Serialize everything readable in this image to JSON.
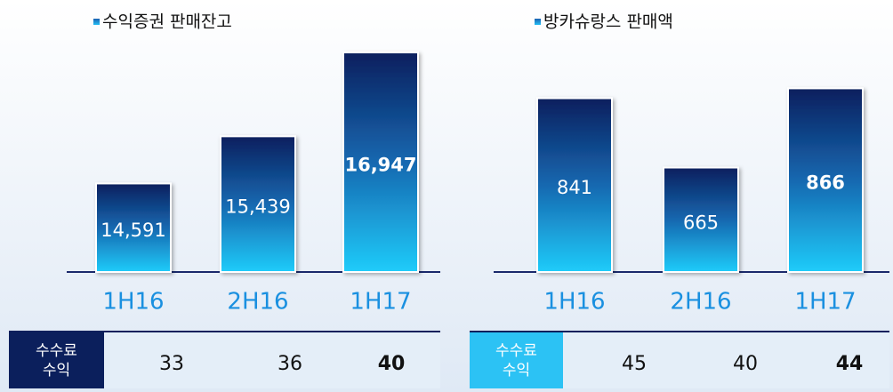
{
  "chart_data": [
    {
      "type": "bar",
      "title": "수익증권 판매잔고",
      "categories": [
        "1H16",
        "2H16",
        "1H17"
      ],
      "values": [
        14591,
        15439,
        16947
      ],
      "value_labels": [
        "14,591",
        "15,439",
        "16,947"
      ],
      "ylim": [
        13000,
        17250
      ],
      "fee_row": {
        "label_lines": [
          "수수료",
          "수익"
        ],
        "values": [
          33,
          36,
          40
        ]
      }
    },
    {
      "type": "bar",
      "title": "방카슈랑스 판매액",
      "categories": [
        "1H16",
        "2H16",
        "1H17"
      ],
      "values": [
        841,
        665,
        866
      ],
      "ylim": [
        400,
        1000
      ],
      "fee_row": {
        "label_lines": [
          "수수료",
          "수익"
        ],
        "values": [
          45,
          40,
          44
        ]
      }
    }
  ]
}
